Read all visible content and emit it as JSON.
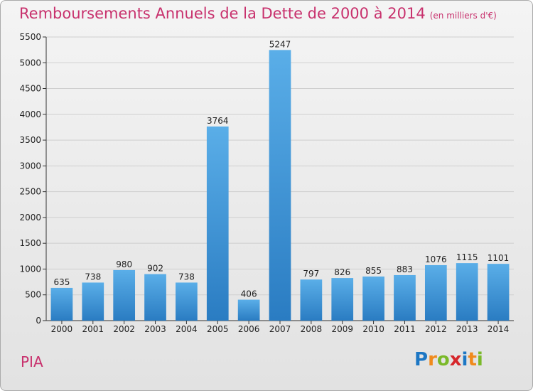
{
  "header": {
    "title": "Remboursements Annuels de la Dette de 2000 à 2014",
    "subtitle": "(en milliers d'€)"
  },
  "footer": {
    "commune": "PIA",
    "logo_letters": [
      "P",
      "r",
      "o",
      "x",
      "i",
      "t",
      "i"
    ],
    "logo_colors": [
      "#1d77c4",
      "#f08a1c",
      "#7ab929",
      "#d6262b",
      "#1d77c4",
      "#f08a1c",
      "#7ab929"
    ]
  },
  "chart_data": {
    "type": "bar",
    "categories": [
      "2000",
      "2001",
      "2002",
      "2003",
      "2004",
      "2005",
      "2006",
      "2007",
      "2008",
      "2009",
      "2010",
      "2011",
      "2012",
      "2013",
      "2014"
    ],
    "values": [
      635,
      738,
      980,
      902,
      738,
      3764,
      406,
      5247,
      797,
      826,
      855,
      883,
      1076,
      1115,
      1101
    ],
    "data_labels": [
      "635",
      "738",
      "980",
      "902",
      "738",
      "3764",
      "406",
      "5247",
      "797",
      "826",
      "855",
      "883",
      "1076",
      "1115",
      "1101"
    ],
    "title": "Remboursements Annuels de la Dette de 2000 à 2014",
    "ylim": [
      0,
      5500
    ],
    "yticks": [
      0,
      500,
      1000,
      1500,
      2000,
      2500,
      3000,
      3500,
      4000,
      4500,
      5000,
      5500
    ],
    "ytick_labels": [
      "0",
      "500",
      "1000",
      "1500",
      "2000",
      "2500",
      "3000",
      "3500",
      "4000",
      "4500",
      "5000",
      "5500"
    ],
    "grid": true,
    "bar_color_top": "#5aaee8",
    "bar_color_bottom": "#2a7cc2"
  }
}
